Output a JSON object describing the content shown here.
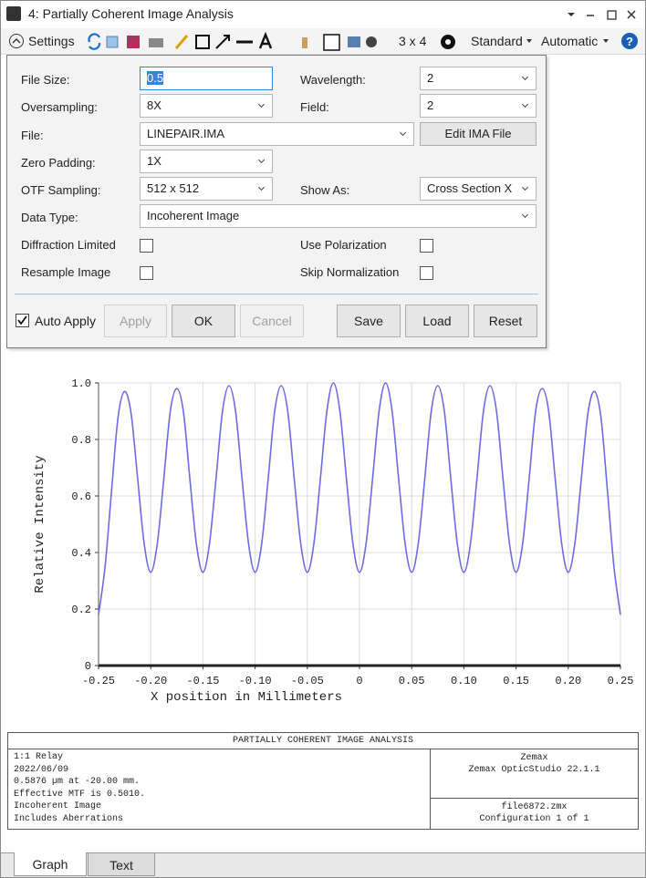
{
  "window": {
    "title": "4: Partially Coherent Image Analysis"
  },
  "toolbar": {
    "settings": "Settings",
    "layout": "3 x 4",
    "standard": "Standard",
    "automatic": "Automatic"
  },
  "form": {
    "file_size": {
      "label": "File Size:",
      "value": "0.5"
    },
    "wavelength": {
      "label": "Wavelength:",
      "value": "2"
    },
    "oversampling": {
      "label": "Oversampling:",
      "value": "8X"
    },
    "field": {
      "label": "Field:",
      "value": "2"
    },
    "file": {
      "label": "File:",
      "value": "LINEPAIR.IMA"
    },
    "edit_button": "Edit IMA File",
    "zero_padding": {
      "label": "Zero Padding:",
      "value": "1X"
    },
    "otf_sampling": {
      "label": "OTF Sampling:",
      "value": "512 x 512"
    },
    "show_as": {
      "label": "Show As:",
      "value": "Cross Section X"
    },
    "data_type": {
      "label": "Data Type:",
      "value": "Incoherent Image"
    },
    "diffraction_limited": "Diffraction Limited",
    "use_polarization": "Use Polarization",
    "resample_image": "Resample Image",
    "skip_normalization": "Skip Normalization",
    "auto_apply": "Auto Apply",
    "buttons": [
      "Apply",
      "OK",
      "Cancel",
      "Save",
      "Load",
      "Reset"
    ]
  },
  "chart_data": {
    "type": "line",
    "xlabel": "X position in Millimeters",
    "ylabel": "Relative Intensity",
    "color": "#6b6be6",
    "grid": true,
    "xlim": [
      -0.25,
      0.25
    ],
    "ylim": [
      0,
      1
    ],
    "xticks": [
      -0.25,
      {
        "value": -0.2,
        "label": "-0.20"
      },
      -0.15,
      {
        "value": -0.1,
        "label": "-0.10"
      },
      -0.05,
      0,
      0.05,
      {
        "value": 0.1,
        "label": "0.10"
      },
      0.15,
      {
        "value": 0.2,
        "label": "0.20"
      },
      0.25
    ],
    "yticks": [
      0,
      0.2,
      0.4,
      0.6,
      0.8,
      {
        "value": 1,
        "label": "1.0"
      }
    ],
    "x": [
      -0.25,
      -0.24375,
      -0.2375,
      -0.23125,
      -0.225,
      -0.21875,
      -0.2125,
      -0.20625,
      -0.2,
      -0.19375,
      -0.1875,
      -0.18125,
      -0.175,
      -0.16875,
      -0.1625,
      -0.15625,
      -0.15,
      -0.14375,
      -0.1375,
      -0.13125,
      -0.125,
      -0.11875,
      -0.1125,
      -0.10625,
      -0.1,
      -0.09375,
      -0.0875,
      -0.08125,
      -0.075,
      -0.06875,
      -0.0625,
      -0.05625,
      -0.05,
      -0.04375,
      -0.0375,
      -0.03125,
      -0.025,
      -0.01875,
      -0.0125,
      -0.00625,
      0,
      0.00625,
      0.0125,
      0.01875,
      0.025,
      0.03125,
      0.0375,
      0.04375,
      0.05,
      0.05625,
      0.0625,
      0.06875,
      0.075,
      0.08125,
      0.0875,
      0.09375,
      0.1,
      0.10625,
      0.1125,
      0.11875,
      0.125,
      0.13125,
      0.1375,
      0.14375,
      0.15,
      0.15625,
      0.1625,
      0.16875,
      0.175,
      0.18125,
      0.1875,
      0.19375,
      0.2,
      0.20625,
      0.2125,
      0.21875,
      0.225,
      0.23125,
      0.2375,
      0.24375,
      0.25
    ],
    "values": [
      0.18,
      0.35,
      0.62,
      0.88,
      0.97,
      0.89,
      0.66,
      0.43,
      0.33,
      0.43,
      0.66,
      0.9,
      0.98,
      0.9,
      0.66,
      0.43,
      0.33,
      0.43,
      0.66,
      0.9,
      0.99,
      0.9,
      0.66,
      0.43,
      0.33,
      0.43,
      0.66,
      0.9,
      0.99,
      0.9,
      0.66,
      0.43,
      0.33,
      0.43,
      0.66,
      0.9,
      1.0,
      0.9,
      0.66,
      0.43,
      0.33,
      0.43,
      0.66,
      0.9,
      1.0,
      0.9,
      0.66,
      0.43,
      0.33,
      0.43,
      0.66,
      0.9,
      0.99,
      0.9,
      0.66,
      0.43,
      0.33,
      0.43,
      0.66,
      0.9,
      0.99,
      0.9,
      0.66,
      0.43,
      0.33,
      0.43,
      0.66,
      0.9,
      0.98,
      0.9,
      0.66,
      0.43,
      0.33,
      0.43,
      0.66,
      0.89,
      0.97,
      0.88,
      0.62,
      0.35,
      0.18
    ]
  },
  "footer": {
    "title": "PARTIALLY COHERENT IMAGE ANALYSIS",
    "notes": [
      "1:1 Relay",
      "2022/06/09",
      "0.5876 µm at -20.00 mm.",
      "Effective MTF is 0.5010.",
      "Incoherent Image",
      "Includes Aberrations"
    ],
    "company": "Zemax",
    "product": "Zemax OpticStudio 22.1.1",
    "file": "file6872.zmx",
    "configuration": "Configuration 1 of 1"
  },
  "tabs": [
    "Graph",
    "Text"
  ]
}
